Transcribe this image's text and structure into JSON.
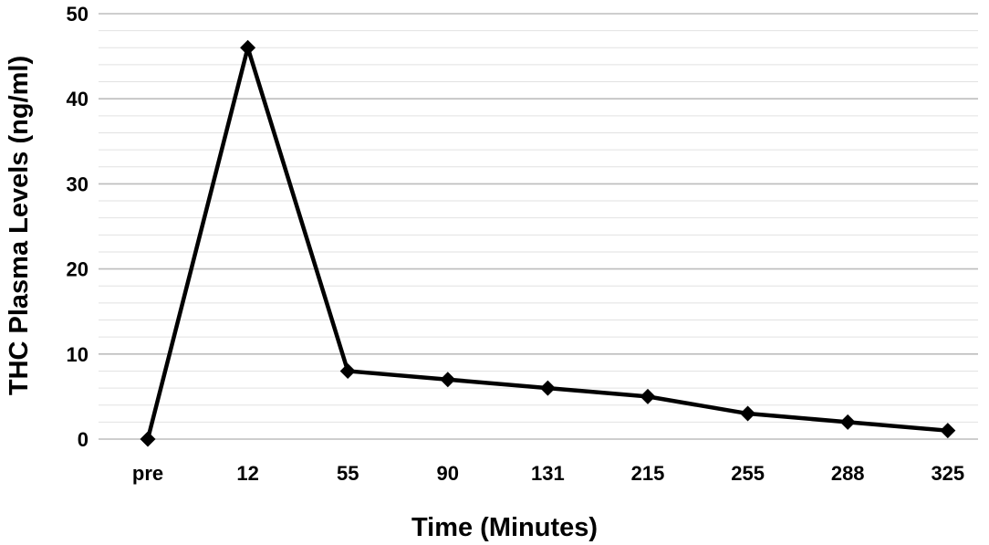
{
  "chart_data": {
    "type": "line",
    "title": "",
    "xlabel": "Time (Minutes)",
    "ylabel": "THC Plasma Levels (ng/ml)",
    "categories": [
      "pre",
      "12",
      "55",
      "90",
      "131",
      "215",
      "255",
      "288",
      "325"
    ],
    "series": [
      {
        "values": [
          0,
          46,
          8,
          7,
          6,
          5,
          3,
          2,
          1
        ]
      }
    ],
    "ylim": [
      0,
      50
    ],
    "yticks": [
      "0",
      "10",
      "20",
      "30",
      "40",
      "50"
    ],
    "y_minor_step": 2,
    "grid": true,
    "legend": "none",
    "marker": "diamond",
    "line_color": "#000000",
    "grid_color": "#bdbdbd"
  }
}
